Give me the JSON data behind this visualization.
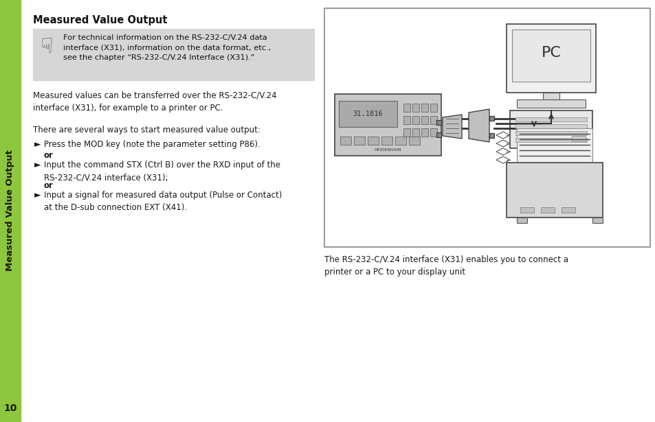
{
  "page_bg": "#ffffff",
  "sidebar_color": "#8dc63f",
  "sidebar_text": "Measured Value Output",
  "sidebar_text_color": "#1a1a00",
  "page_number": "10",
  "title": "Measured Value Output",
  "title_fontsize": 10.5,
  "note_box_color": "#d6d6d6",
  "note_text": "For technical information on the RS-232-C/V.24 data\ninterface (X31), information on the data format, etc.,\nsee the chapter “RS-232-C/V.24 Interface (X31).”",
  "body_text_fontsize": 8.5,
  "body_color": "#1a1a1a",
  "para1": "Measured values can be transferred over the RS-232-C/V.24\ninterface (X31), for example to a printer or PC.",
  "para2": "There are several ways to start measured value output:",
  "bullet1_arrow": "►",
  "bullet1_text": "Press the MOD key (note the parameter setting P86).",
  "or1": "or",
  "bullet2_arrow": "►",
  "bullet2_text": "Input the command STX (Ctrl B) over the RXD input of the\nRS-232-C/V.24 interface (X31);",
  "or2": "or",
  "bullet3_arrow": "►",
  "bullet3_text": "Input a signal for measured data output (Pulse or Contact)\nat the D-sub connection EXT (X41).",
  "caption": "The RS-232-C/V.24 interface (X31) enables you to connect a\nprinter or a PC to your display unit",
  "caption_fontsize": 8.5,
  "diag_border_color": "#888888",
  "diag_bg": "#ffffff"
}
